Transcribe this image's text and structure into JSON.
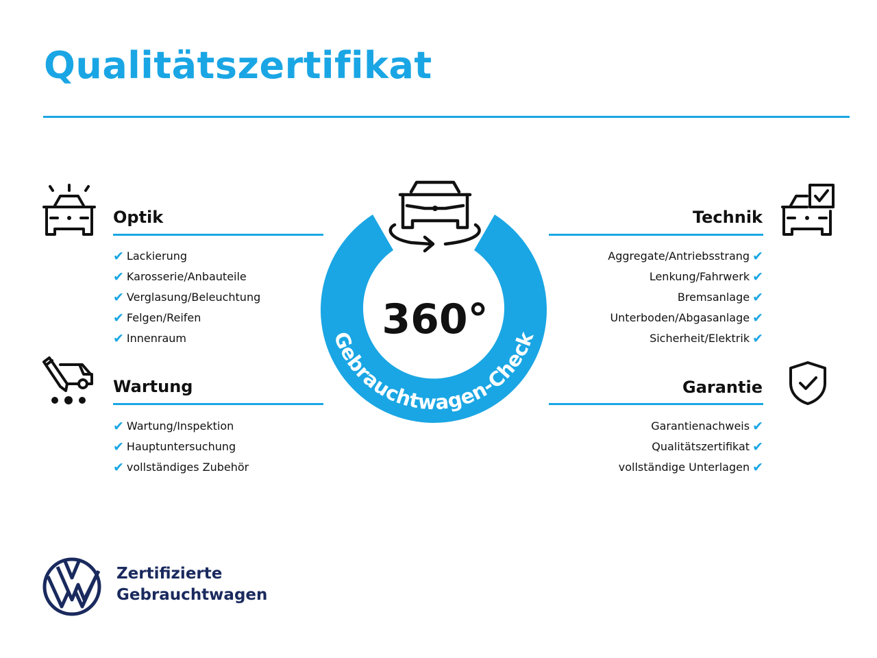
{
  "title": "Qualitätszertifikat",
  "center": {
    "degrees": "360°",
    "ring_text": "Gebrauchtwagen-Check"
  },
  "colors": {
    "accent": "#1aa6e4",
    "brand": "#1a2a5e"
  },
  "sections": {
    "optik": {
      "title": "Optik",
      "icon": "car-inspection-icon",
      "items": [
        "Lackierung",
        "Karosserie/Anbauteile",
        "Verglasung/Beleuchtung",
        "Felgen/Reifen",
        "Innenraum"
      ]
    },
    "wartung": {
      "title": "Wartung",
      "icon": "maintenance-van-icon",
      "items": [
        "Wartung/Inspektion",
        "Hauptuntersuchung",
        "vollständiges Zubehör"
      ]
    },
    "technik": {
      "title": "Technik",
      "icon": "car-checklist-icon",
      "items": [
        "Aggregate/Antriebsstrang",
        "Lenkung/Fahrwerk",
        "Bremsanlage",
        "Unterboden/Abgasanlage",
        "Sicherheit/Elektrik"
      ]
    },
    "garantie": {
      "title": "Garantie",
      "icon": "shield-check-icon",
      "items": [
        "Garantienachweis",
        "Qualitätszertifikat",
        "vollständige Unterlagen"
      ]
    }
  },
  "check_mark": "✔",
  "brand": {
    "line1": "Zertifizierte",
    "line2": "Gebrauchtwagen",
    "logo": "VW"
  }
}
